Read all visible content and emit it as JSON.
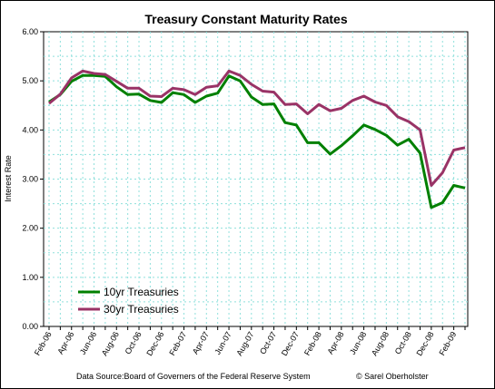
{
  "chart_data": {
    "type": "line",
    "title": "Treasury Constant Maturity Rates",
    "xlabel": "",
    "ylabel": "Interest Rate",
    "ylim": [
      0,
      6
    ],
    "y_ticks": [
      "0.00",
      "1.00",
      "2.00",
      "3.00",
      "4.00",
      "5.00",
      "6.00"
    ],
    "grid": true,
    "legend_position": "bottom-left",
    "x": [
      "Feb-06",
      "Mar-06",
      "Apr-06",
      "May-06",
      "Jun-06",
      "Jul-06",
      "Aug-06",
      "Sep-06",
      "Oct-06",
      "Nov-06",
      "Dec-06",
      "Jan-07",
      "Feb-07",
      "Mar-07",
      "Apr-07",
      "May-07",
      "Jun-07",
      "Jul-07",
      "Aug-07",
      "Sep-07",
      "Oct-07",
      "Nov-07",
      "Dec-07",
      "Jan-08",
      "Feb-08",
      "Mar-08",
      "Apr-08",
      "May-08",
      "Jun-08",
      "Jul-08",
      "Aug-08",
      "Sep-08",
      "Oct-08",
      "Nov-08",
      "Dec-08",
      "Jan-09",
      "Feb-09",
      "Mar-09"
    ],
    "x_tick_labels": [
      "Feb-06",
      "Apr-06",
      "Jun-06",
      "Aug-06",
      "Oct-06",
      "Dec-06",
      "Feb-07",
      "Apr-07",
      "Jun-07",
      "Aug-07",
      "Oct-07",
      "Dec-07",
      "Feb-08",
      "Apr-08",
      "Jun-08",
      "Aug-08",
      "Oct-08",
      "Dec-08",
      "Feb-09"
    ],
    "series": [
      {
        "name": "10yr Treasuries",
        "color": "#008000",
        "values": [
          4.57,
          4.72,
          4.99,
          5.11,
          5.11,
          5.09,
          4.88,
          4.72,
          4.73,
          4.6,
          4.56,
          4.76,
          4.72,
          4.56,
          4.69,
          4.75,
          5.1,
          5.0,
          4.67,
          4.52,
          4.53,
          4.15,
          4.1,
          3.74,
          3.74,
          3.51,
          3.68,
          3.88,
          4.1,
          4.01,
          3.89,
          3.69,
          3.81,
          3.53,
          2.42,
          2.52,
          2.87,
          2.82
        ]
      },
      {
        "name": "30yr Treasuries",
        "color": "#993366",
        "values": [
          4.54,
          4.73,
          5.06,
          5.2,
          5.15,
          5.13,
          4.99,
          4.85,
          4.85,
          4.69,
          4.68,
          4.85,
          4.82,
          4.72,
          4.87,
          4.9,
          5.2,
          5.11,
          4.93,
          4.79,
          4.77,
          4.52,
          4.53,
          4.33,
          4.52,
          4.39,
          4.44,
          4.6,
          4.69,
          4.57,
          4.5,
          4.27,
          4.17,
          4.0,
          2.87,
          3.13,
          3.59,
          3.64
        ]
      }
    ]
  },
  "footer": {
    "source": "Data Source:Board of Governers of the Federal Reserve System",
    "credit": "© Sarel Oberholster"
  }
}
